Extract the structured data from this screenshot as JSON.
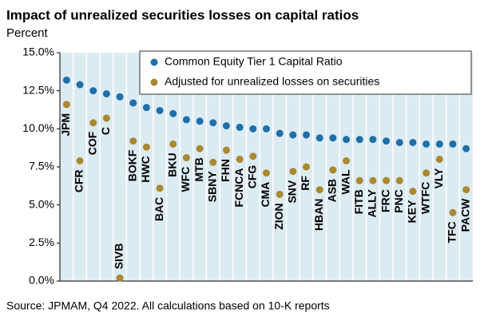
{
  "chart_data": {
    "type": "scatter",
    "title": "Impact of unrealized securities losses on capital ratios",
    "subtitle": "Percent",
    "source": "Source: JPMAM, Q4 2022.  All calculations based on 10-K reports",
    "categories": [
      "JPM",
      "CFR",
      "COF",
      "C",
      "SIVB",
      "BOKF",
      "HWC",
      "BAC",
      "BKU",
      "WFC",
      "MTB",
      "SBNY",
      "FHN",
      "FCNCA",
      "CFG",
      "CMA",
      "ZION",
      "SNV",
      "RF",
      "HBAN",
      "ASB",
      "WAL",
      "FITB",
      "ALLY",
      "FRC",
      "PNC",
      "KEY",
      "WTFC",
      "VLY",
      "TFC",
      "PACW"
    ],
    "series": [
      {
        "name": "Common Equity Tier 1 Capital Ratio",
        "color": "#1f6fa8",
        "values": [
          13.2,
          12.9,
          12.5,
          12.3,
          12.1,
          11.7,
          11.4,
          11.2,
          11.0,
          10.6,
          10.5,
          10.4,
          10.2,
          10.1,
          10.0,
          10.0,
          9.7,
          9.6,
          9.6,
          9.4,
          9.4,
          9.3,
          9.3,
          9.3,
          9.2,
          9.1,
          9.1,
          9.0,
          9.0,
          9.0,
          8.7
        ]
      },
      {
        "name": "Adjusted for unrealized losses on securities",
        "color": "#a8892f",
        "values": [
          11.6,
          7.9,
          10.4,
          10.7,
          0.2,
          9.2,
          8.8,
          6.1,
          9.0,
          8.1,
          8.7,
          7.8,
          8.6,
          8.0,
          8.2,
          7.1,
          5.7,
          7.2,
          7.5,
          6.0,
          7.3,
          7.9,
          6.6,
          6.6,
          6.6,
          6.6,
          5.9,
          7.1,
          8.0,
          4.5,
          6.0
        ]
      }
    ],
    "ylim": [
      0,
      15
    ],
    "yticks": [
      {
        "value": 0,
        "label": "0.0%"
      },
      {
        "value": 2.5,
        "label": "2.5%"
      },
      {
        "value": 5,
        "label": "5.0%"
      },
      {
        "value": 7.5,
        "label": "7.5%"
      },
      {
        "value": 10,
        "label": "10.0%"
      },
      {
        "value": 12.5,
        "label": "12.5%"
      },
      {
        "value": 15,
        "label": "15.0%"
      }
    ],
    "legend": "top-right"
  }
}
